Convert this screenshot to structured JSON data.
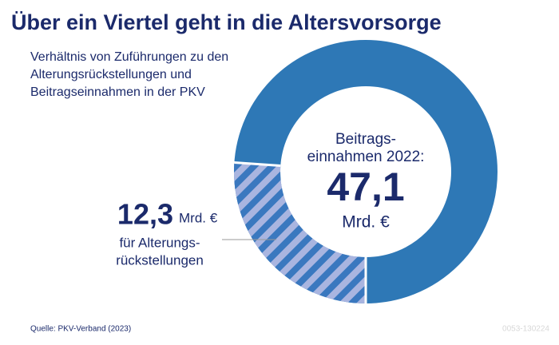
{
  "chart_data": {
    "type": "donut",
    "title": "Über ein Viertel geht in die Altersvorsorge",
    "subtitle": [
      "Verhältnis von Zuführungen zu den",
      "Alterungsrückstellungen und",
      "Beitragseinnahmen in der PKV"
    ],
    "total": {
      "label": [
        "Beitrags-",
        "einnahmen 2022:"
      ],
      "value": 47.1,
      "value_label": "47,1",
      "unit": "Mrd. €",
      "color": "#2e78b6"
    },
    "segment": {
      "label": [
        "für Alterungs-",
        "rückstellungen"
      ],
      "value": 12.3,
      "value_label": "12,3",
      "unit": "Mrd. €",
      "color": "#3a78bf",
      "hatch_color": "#a9b5e0"
    },
    "source": "Quelle: PKV-Verband (2023)",
    "code": "0053-130224"
  }
}
